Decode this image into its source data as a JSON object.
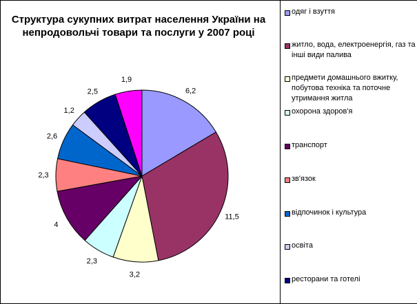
{
  "chart_data": {
    "type": "pie",
    "title": "Структура сукупних витрат населення України  на непродовольчі товари та послуги у 2007 році",
    "legend_position": "right",
    "slices": [
      {
        "label": "одяг і взуття",
        "value": 6.2,
        "value_label": "6,2",
        "color": "#9999ff"
      },
      {
        "label": "житло, вода, електроенергія, газ та інші види палива",
        "value": 11.5,
        "value_label": "11,5",
        "color": "#993366"
      },
      {
        "label": "предмети домашнього вжитку, побутова техніка та поточне утримання житла",
        "value": 3.2,
        "value_label": "3,2",
        "color": "#ffffcc"
      },
      {
        "label": "охорона здоров'я",
        "value": 2.3,
        "value_label": "2,3",
        "color": "#ccffff"
      },
      {
        "label": "транспорт",
        "value": 4,
        "value_label": "4",
        "color": "#660066"
      },
      {
        "label": "зв'язок",
        "value": 2.3,
        "value_label": "2,3",
        "color": "#ff8080"
      },
      {
        "label": "відпочинок і культура",
        "value": 2.6,
        "value_label": "2,6",
        "color": "#0066cc"
      },
      {
        "label": "освіта",
        "value": 1.2,
        "value_label": "1,2",
        "color": "#ccccff"
      },
      {
        "label": "ресторани та готелі",
        "value": 2.5,
        "value_label": "2,5",
        "color": "#000080"
      },
      {
        "label": "",
        "value": 1.9,
        "value_label": "1,9",
        "color": "#ff00ff"
      }
    ]
  }
}
